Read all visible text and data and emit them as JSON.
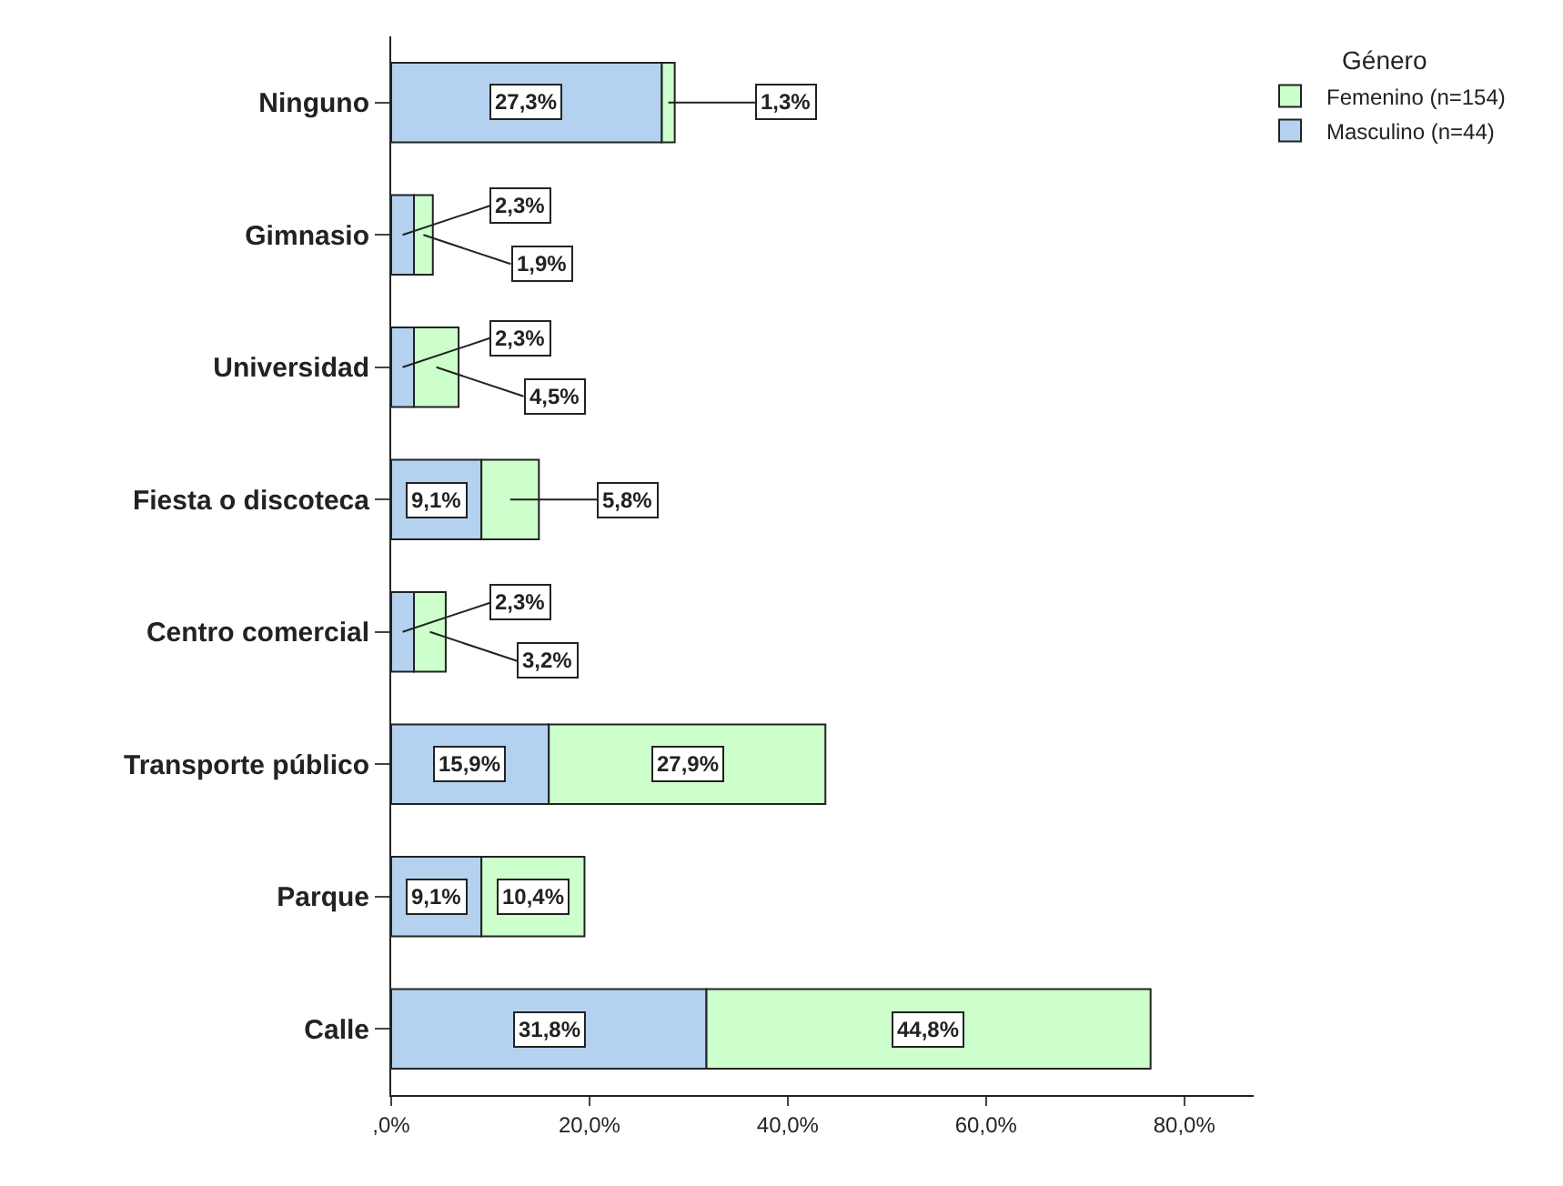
{
  "chart_data": {
    "type": "bar",
    "orientation": "horizontal",
    "stacked": true,
    "legend": "top right",
    "legend_title": "Género",
    "categories": [
      "Ninguno",
      "Gimnasio",
      "Universidad",
      "Fiesta o discoteca",
      "Centro comercial",
      "Transporte público",
      "Parque",
      "Calle"
    ],
    "series": [
      {
        "name": "Masculino (n=44)",
        "color": "#b4d2f0",
        "values": [
          27.3,
          2.3,
          2.3,
          9.1,
          2.3,
          15.9,
          9.1,
          31.8
        ],
        "value_labels": [
          "27,3%",
          "2,3%",
          "2,3%",
          "9,1%",
          "2,3%",
          "15,9%",
          "9,1%",
          "31,8%"
        ]
      },
      {
        "name": "Femenino (n=154)",
        "color": "#ccffcc",
        "values": [
          1.3,
          1.9,
          4.5,
          5.8,
          3.2,
          27.9,
          10.4,
          44.8
        ],
        "value_labels": [
          "1,3%",
          "1,9%",
          "4,5%",
          "5,8%",
          "3,2%",
          "27,9%",
          "10,4%",
          "44,8%"
        ]
      }
    ],
    "xlim": [
      0,
      87
    ],
    "xticks": [
      {
        "value": 0,
        "label": ",0%"
      },
      {
        "value": 20,
        "label": "20,0%"
      },
      {
        "value": 40,
        "label": "40,0%"
      },
      {
        "value": 60,
        "label": "60,0%"
      },
      {
        "value": 80,
        "label": "80,0%"
      }
    ]
  }
}
